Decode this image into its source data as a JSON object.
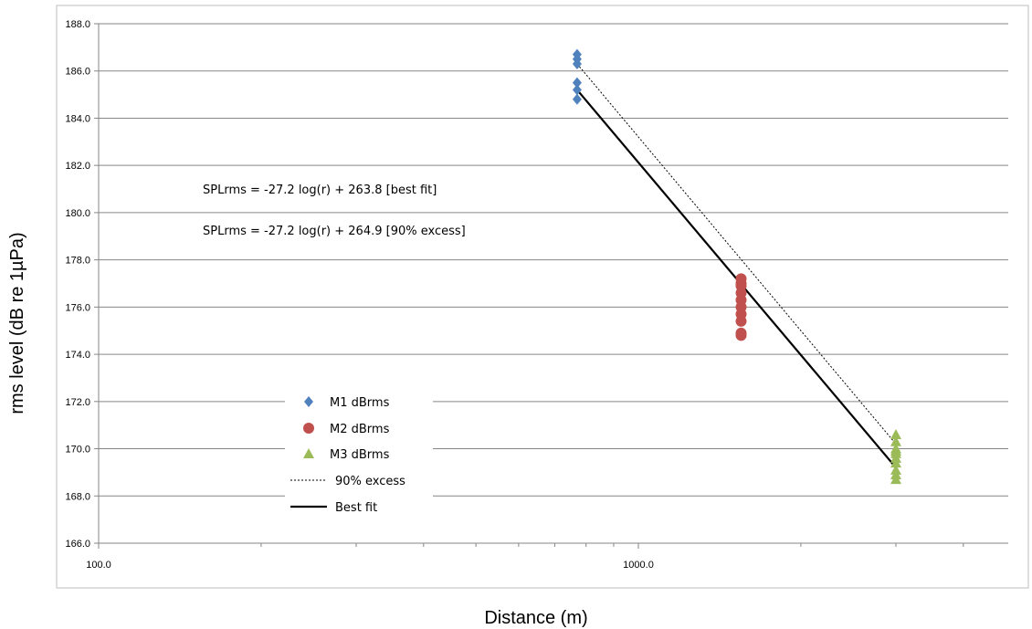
{
  "chart_data": {
    "type": "scatter",
    "xlabel": "Distance (m)",
    "ylabel": "rms level (dB re 1µPa)",
    "x_scale": "log",
    "xlim": [
      100,
      5000
    ],
    "ylim": [
      166,
      188
    ],
    "x_tick_labels": [
      "100.0",
      "1000.0"
    ],
    "x_tick_values": [
      100,
      1000
    ],
    "y_ticks": [
      166,
      168,
      170,
      172,
      174,
      176,
      178,
      180,
      182,
      184,
      186,
      188
    ],
    "y_tick_labels": [
      "166.0",
      "168.0",
      "170.0",
      "172.0",
      "174.0",
      "176.0",
      "178.0",
      "180.0",
      "182.0",
      "184.0",
      "186.0",
      "188.0"
    ],
    "grid": "horizontal",
    "annotations": [
      "SPLrms = -27.2 log(r) + 263.8 [best fit]",
      "SPLrms = -27.2 log(r) + 264.9 [90% excess]"
    ],
    "series": [
      {
        "name": "M1 dBrms",
        "marker": "diamond",
        "color": "#4f81bd",
        "x": [
          770,
          770,
          770,
          770,
          770,
          770
        ],
        "y": [
          186.7,
          186.3,
          185.5,
          185.2,
          184.8,
          186.5
        ]
      },
      {
        "name": "M2 dBrms",
        "marker": "circle",
        "color": "#c0504d",
        "x": [
          1550,
          1550,
          1550,
          1550,
          1550,
          1550,
          1550,
          1550,
          1550,
          1550
        ],
        "y": [
          177.2,
          176.9,
          176.6,
          176.3,
          176.0,
          175.7,
          175.4,
          174.9,
          174.8,
          177.0
        ]
      },
      {
        "name": "M3 dBrms",
        "marker": "triangle",
        "color": "#9bbb59",
        "x": [
          3000,
          3000,
          3000,
          3000,
          3000,
          3000,
          3000,
          3000,
          3000,
          3000
        ],
        "y": [
          170.6,
          170.3,
          170.0,
          169.8,
          169.6,
          169.4,
          169.1,
          168.9,
          168.7,
          169.9
        ]
      },
      {
        "name": "90% excess",
        "kind": "line",
        "style": "dotted",
        "color": "#000000",
        "x": [
          770,
          3000
        ],
        "y": [
          186.3,
          170.2
        ]
      },
      {
        "name": "Best fit",
        "kind": "line",
        "style": "solid",
        "color": "#000000",
        "x": [
          770,
          3000
        ],
        "y": [
          185.2,
          169.2
        ]
      }
    ],
    "legend_position": "lower-left"
  }
}
